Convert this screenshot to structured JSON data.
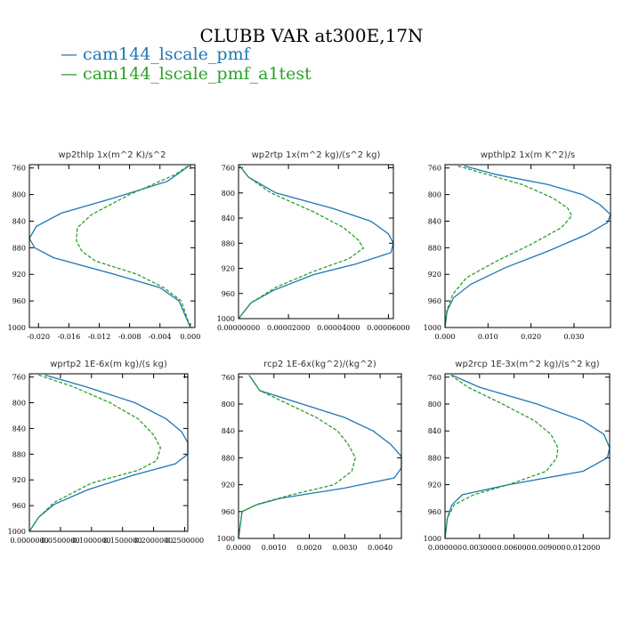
{
  "figure": {
    "title": "CLUBB VAR at300E,17N",
    "legend": [
      {
        "label": "cam144_lscale_pmf",
        "color": "#1f77b4"
      },
      {
        "label": "cam144_lscale_pmf_a1test",
        "color": "#2ca02c"
      }
    ]
  },
  "chart_data": [
    {
      "type": "line",
      "title": "wp2thlp  1x(m^2 K)/s^2",
      "ylim": [
        1000,
        755
      ],
      "xlim": [
        -0.0212,
        0.0006
      ],
      "xticks": [
        -0.02,
        -0.016,
        -0.012,
        -0.008,
        -0.004,
        0.0
      ],
      "xtick_labels": [
        "-0.020",
        "-0.016",
        "-0.012",
        "-0.008",
        "-0.004",
        "0.000"
      ],
      "yticks": [
        760,
        800,
        840,
        880,
        920,
        960,
        1000
      ],
      "series": [
        {
          "name": "cam144_lscale_pmf",
          "color": "#1f77b4",
          "dashed": false,
          "x": [
            -0.0002,
            -0.003,
            -0.01,
            -0.017,
            -0.0203,
            -0.0212,
            -0.0205,
            -0.018,
            -0.01,
            -0.004,
            -0.0015,
            0.0
          ],
          "y": [
            757,
            780,
            805,
            828,
            848,
            866,
            880,
            895,
            920,
            940,
            960,
            1000
          ]
        },
        {
          "name": "cam144_lscale_pmf_a1test",
          "color": "#2ca02c",
          "dashed": true,
          "x": [
            -0.0003,
            -0.002,
            -0.008,
            -0.013,
            -0.0149,
            -0.015,
            -0.0143,
            -0.0125,
            -0.007,
            -0.0035,
            -0.0012,
            0.0
          ],
          "y": [
            757,
            770,
            800,
            830,
            850,
            870,
            885,
            900,
            920,
            940,
            960,
            1000
          ]
        }
      ]
    },
    {
      "type": "line",
      "title": "wp2rtp  1x(m^2 kg)/(s^2 kg)",
      "ylim": [
        1000,
        755
      ],
      "xlim": [
        0.0,
        6.2e-05
      ],
      "xticks": [
        0.0,
        2e-05,
        4e-05,
        6e-05
      ],
      "xtick_labels": [
        "0.00000000",
        "0.00002000",
        "0.00004000",
        "0.00006000"
      ],
      "yticks": [
        760,
        800,
        840,
        880,
        920,
        960,
        1000
      ],
      "series": [
        {
          "name": "cam144_lscale_pmf",
          "color": "#1f77b4",
          "dashed": false,
          "x": [
            5e-07,
            4e-06,
            1.5e-05,
            3.8e-05,
            5.3e-05,
            6e-05,
            6.2e-05,
            6.1e-05,
            4.7e-05,
            3e-05,
            1.4e-05,
            5e-06,
            0.0
          ],
          "y": [
            757,
            775,
            800,
            825,
            845,
            865,
            880,
            895,
            913,
            930,
            955,
            975,
            1000
          ]
        },
        {
          "name": "cam144_lscale_pmf_a1test",
          "color": "#2ca02c",
          "dashed": true,
          "x": [
            5e-07,
            4e-06,
            1.3e-05,
            3e-05,
            4.2e-05,
            4.8e-05,
            5e-05,
            4.4e-05,
            3e-05,
            1.5e-05,
            5e-06,
            0.0
          ],
          "y": [
            757,
            775,
            800,
            830,
            855,
            875,
            888,
            905,
            925,
            950,
            975,
            1000
          ]
        }
      ]
    },
    {
      "type": "line",
      "title": "wpthlp2  1x(m K^2)/s",
      "ylim": [
        1000,
        755
      ],
      "xlim": [
        0.0,
        0.0385
      ],
      "xticks": [
        0.0,
        0.01,
        0.02,
        0.03
      ],
      "xtick_labels": [
        "0.000",
        "0.010",
        "0.020",
        "0.030"
      ],
      "yticks": [
        760,
        800,
        840,
        880,
        920,
        960,
        1000
      ],
      "series": [
        {
          "name": "cam144_lscale_pmf",
          "color": "#1f77b4",
          "dashed": false,
          "x": [
            0.0045,
            0.012,
            0.024,
            0.032,
            0.036,
            0.0385,
            0.0378,
            0.033,
            0.024,
            0.014,
            0.006,
            0.002,
            0.0005,
            0.0
          ],
          "y": [
            757,
            770,
            785,
            800,
            815,
            830,
            842,
            860,
            885,
            910,
            935,
            955,
            975,
            1000
          ]
        },
        {
          "name": "cam144_lscale_pmf_a1test",
          "color": "#2ca02c",
          "dashed": true,
          "x": [
            0.003,
            0.01,
            0.018,
            0.025,
            0.0285,
            0.0295,
            0.027,
            0.02,
            0.012,
            0.005,
            0.0018,
            0.0004,
            0.0
          ],
          "y": [
            757,
            770,
            785,
            805,
            820,
            832,
            850,
            875,
            900,
            925,
            950,
            975,
            1000
          ]
        }
      ]
    },
    {
      "type": "line",
      "title": "wprtp2  1E-6x(m kg)/(s kg)",
      "ylim": [
        1000,
        755
      ],
      "xlim": [
        0.0,
        2.55e-05
      ],
      "xticks": [
        0.0,
        5e-06,
        1e-05,
        1.5e-05,
        2e-05,
        2.5e-05
      ],
      "xtick_labels": [
        "0.0000000",
        "0.0500000",
        "0.1000000",
        "0.1500000",
        "0.2000000",
        "0.2500000"
      ],
      "yticks": [
        760,
        800,
        840,
        880,
        920,
        960,
        1000
      ],
      "series": [
        {
          "name": "cam144_lscale_pmf",
          "color": "#1f77b4",
          "dashed": false,
          "x": [
            2.5e-06,
            9e-06,
            1.7e-05,
            2.2e-05,
            2.45e-05,
            2.55e-05,
            2.55e-05,
            2.35e-05,
            1.7e-05,
            9.5e-06,
            4e-06,
            1.5e-06,
            0.0
          ],
          "y": [
            757,
            775,
            800,
            825,
            845,
            862,
            880,
            895,
            912,
            935,
            958,
            978,
            1000
          ]
        },
        {
          "name": "cam144_lscale_pmf_a1test",
          "color": "#2ca02c",
          "dashed": true,
          "x": [
            1.5e-06,
            7e-06,
            1.3e-05,
            1.75e-05,
            2e-05,
            2.11e-05,
            2.05e-05,
            1.75e-05,
            1e-05,
            4e-06,
            1.5e-06,
            0.0
          ],
          "y": [
            757,
            775,
            800,
            825,
            850,
            870,
            890,
            905,
            925,
            955,
            978,
            1000
          ]
        }
      ]
    },
    {
      "type": "line",
      "title": "rcp2  1E-6x(kg^2)/(kg^2)",
      "ylim": [
        1000,
        755
      ],
      "xlim": [
        0.0,
        0.0046
      ],
      "xticks": [
        0.0,
        0.001,
        0.002,
        0.003,
        0.004
      ],
      "xtick_labels": [
        "0.0000",
        "0.0010",
        "0.0020",
        "0.0030",
        "0.0040"
      ],
      "yticks": [
        760,
        800,
        840,
        880,
        920,
        960,
        1000
      ],
      "series": [
        {
          "name": "cam144_lscale_pmf",
          "color": "#1f77b4",
          "dashed": false,
          "x": [
            0.0003,
            0.0006,
            0.0018,
            0.003,
            0.0038,
            0.0043,
            0.0046,
            0.0046,
            0.0044,
            0.003,
            0.0012,
            0.0005,
            0.0001,
            0.0
          ],
          "y": [
            757,
            780,
            800,
            820,
            840,
            860,
            878,
            895,
            910,
            925,
            940,
            950,
            960,
            1000
          ]
        },
        {
          "name": "cam144_lscale_pmf_a1test",
          "color": "#2ca02c",
          "dashed": true,
          "x": [
            0.0003,
            0.0006,
            0.0014,
            0.0022,
            0.0028,
            0.0031,
            0.0033,
            0.0032,
            0.0027,
            0.0015,
            0.0006,
            0.0001,
            0.0
          ],
          "y": [
            757,
            780,
            800,
            820,
            840,
            860,
            880,
            900,
            920,
            935,
            948,
            960,
            1000
          ]
        }
      ]
    },
    {
      "type": "line",
      "title": "wp2rcp  1E-3x(m^2 kg)/(s^2 kg)",
      "ylim": [
        1000,
        755
      ],
      "xlim": [
        0.0,
        0.0143
      ],
      "xticks": [
        0.0,
        0.003,
        0.006,
        0.009,
        0.012
      ],
      "xtick_labels": [
        "0.000000",
        "0.003000",
        "0.006000",
        "0.009000",
        "0.012000"
      ],
      "yticks": [
        760,
        800,
        840,
        880,
        920,
        960,
        1000
      ],
      "series": [
        {
          "name": "cam144_lscale_pmf",
          "color": "#1f77b4",
          "dashed": false,
          "x": [
            0.0006,
            0.003,
            0.008,
            0.012,
            0.0138,
            0.0143,
            0.0141,
            0.012,
            0.0055,
            0.0015,
            0.0006,
            0.0002,
            0.0
          ],
          "y": [
            757,
            775,
            800,
            825,
            845,
            865,
            880,
            900,
            920,
            935,
            950,
            970,
            1000
          ]
        },
        {
          "name": "cam144_lscale_pmf_a1test",
          "color": "#2ca02c",
          "dashed": true,
          "x": [
            0.0005,
            0.002,
            0.005,
            0.0078,
            0.0092,
            0.0098,
            0.0097,
            0.0088,
            0.0055,
            0.0025,
            0.0008,
            0.0002,
            0.0
          ],
          "y": [
            757,
            775,
            800,
            825,
            845,
            865,
            880,
            900,
            920,
            935,
            950,
            970,
            1000
          ]
        }
      ]
    }
  ]
}
